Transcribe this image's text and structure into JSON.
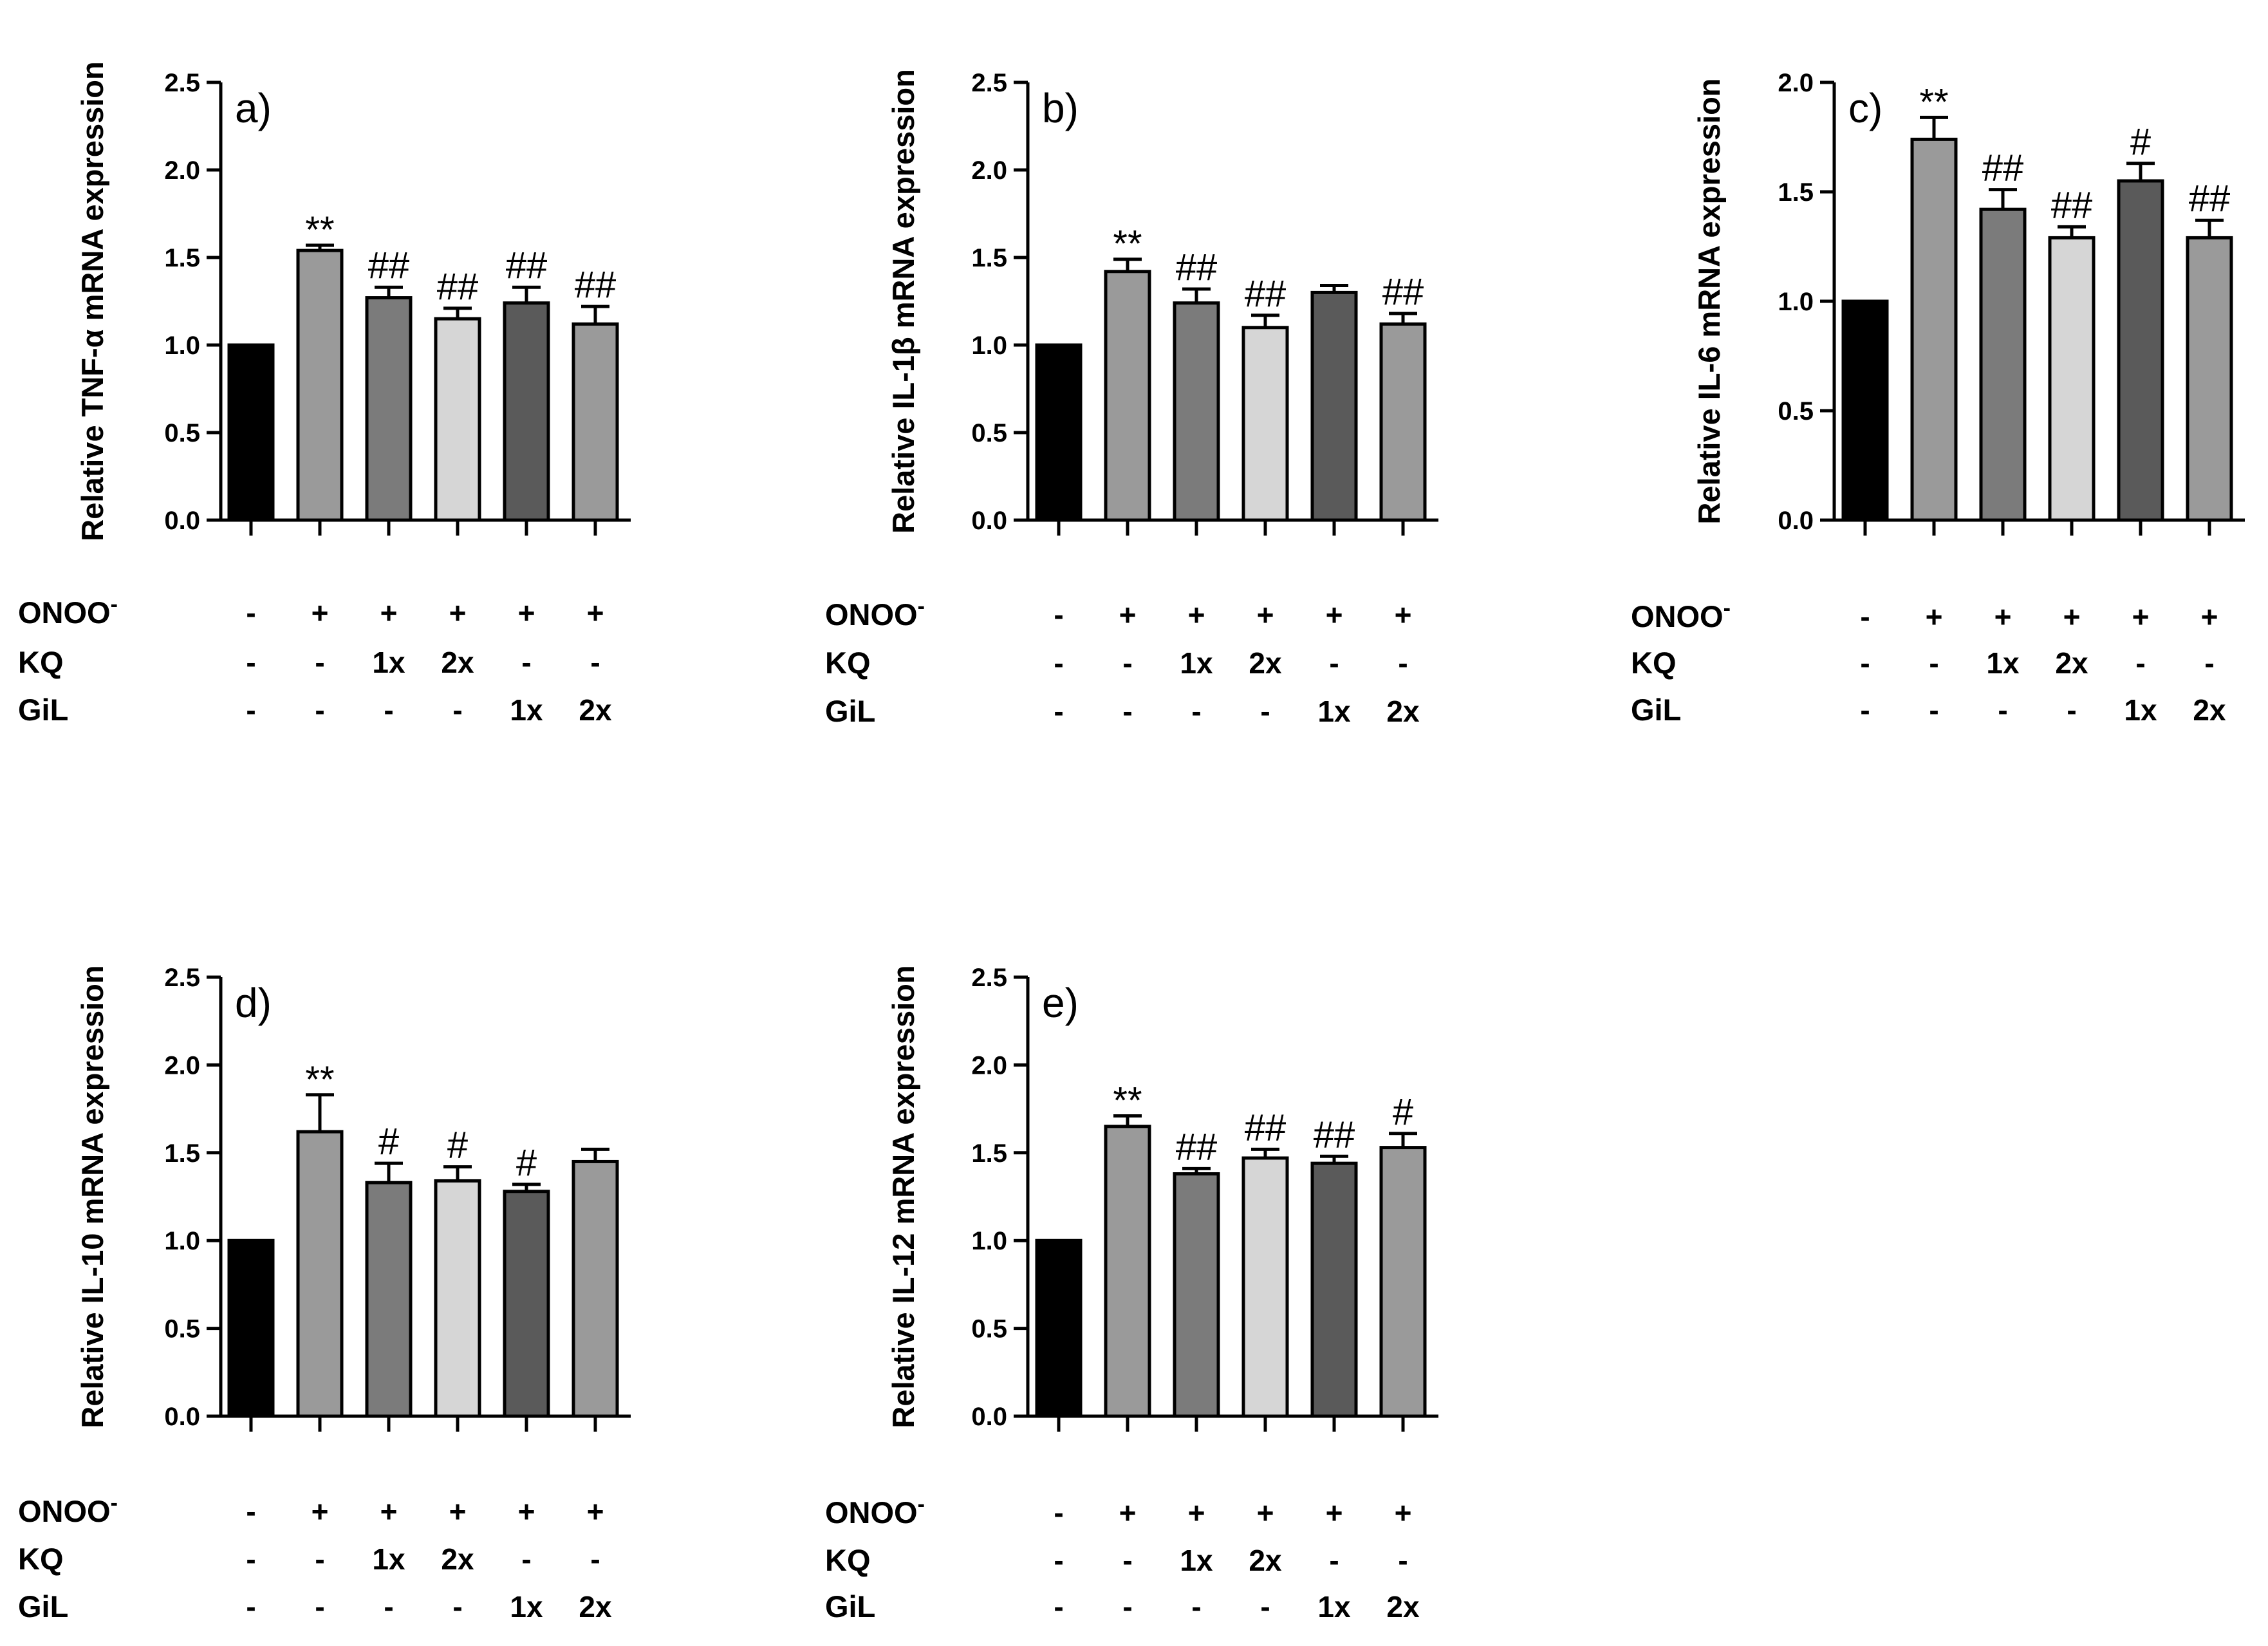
{
  "chart_data": [
    {
      "type": "bar",
      "panel_label": "a)",
      "ylabel": "Relative TNF-α mRNA expression",
      "ylim": [
        0,
        2.5
      ],
      "yticks": [
        "0.0",
        "0.5",
        "1.0",
        "1.5",
        "2.0",
        "2.5"
      ],
      "values": [
        1.0,
        1.54,
        1.27,
        1.15,
        1.24,
        1.12
      ],
      "errors": [
        0,
        0.03,
        0.06,
        0.06,
        0.09,
        0.1
      ],
      "annotations": [
        "",
        "**",
        "##",
        "##",
        "##",
        "##"
      ],
      "conditions": {
        "labels": [
          "ONOO-",
          "KQ",
          "GiL"
        ],
        "rows": [
          [
            "-",
            "+",
            "+",
            "+",
            "+",
            "+"
          ],
          [
            "-",
            "-",
            "1x",
            "2x",
            "-",
            "-"
          ],
          [
            "-",
            "-",
            "-",
            "-",
            "1x",
            "2x"
          ]
        ]
      }
    },
    {
      "type": "bar",
      "panel_label": "b)",
      "ylabel": "Relative IL-1β mRNA expression",
      "ylim": [
        0,
        2.5
      ],
      "yticks": [
        "0.0",
        "0.5",
        "1.0",
        "1.5",
        "2.0",
        "2.5"
      ],
      "values": [
        1.0,
        1.42,
        1.24,
        1.1,
        1.3,
        1.12
      ],
      "errors": [
        0,
        0.07,
        0.08,
        0.07,
        0.04,
        0.06
      ],
      "annotations": [
        "",
        "**",
        "##",
        "##",
        "",
        "##"
      ],
      "conditions": {
        "labels": [
          "ONOO-",
          "KQ",
          "GiL"
        ],
        "rows": [
          [
            "-",
            "+",
            "+",
            "+",
            "+",
            "+"
          ],
          [
            "-",
            "-",
            "1x",
            "2x",
            "-",
            "-"
          ],
          [
            "-",
            "-",
            "-",
            "-",
            "1x",
            "2x"
          ]
        ]
      }
    },
    {
      "type": "bar",
      "panel_label": "c)",
      "ylabel": "Relative IL-6 mRNA expression",
      "ylim": [
        0,
        2.0
      ],
      "yticks": [
        "0.0",
        "0.5",
        "1.0",
        "1.5",
        "2.0"
      ],
      "values": [
        1.0,
        1.74,
        1.42,
        1.29,
        1.55,
        1.29
      ],
      "errors": [
        0,
        0.1,
        0.09,
        0.05,
        0.08,
        0.08
      ],
      "annotations": [
        "",
        "**",
        "##",
        "##",
        "#",
        "##"
      ],
      "conditions": {
        "labels": [
          "ONOO-",
          "KQ",
          "GiL"
        ],
        "rows": [
          [
            "-",
            "+",
            "+",
            "+",
            "+",
            "+"
          ],
          [
            "-",
            "-",
            "1x",
            "2x",
            "-",
            "-"
          ],
          [
            "-",
            "-",
            "-",
            "-",
            "1x",
            "2x"
          ]
        ]
      }
    },
    {
      "type": "bar",
      "panel_label": "d)",
      "ylabel": "Relative IL-10 mRNA expression",
      "ylim": [
        0,
        2.5
      ],
      "yticks": [
        "0.0",
        "0.5",
        "1.0",
        "1.5",
        "2.0",
        "2.5"
      ],
      "values": [
        1.0,
        1.62,
        1.33,
        1.34,
        1.28,
        1.45
      ],
      "errors": [
        0,
        0.21,
        0.11,
        0.08,
        0.04,
        0.07
      ],
      "annotations": [
        "",
        "**",
        "#",
        "#",
        "#",
        ""
      ],
      "conditions": {
        "labels": [
          "ONOO-",
          "KQ",
          "GiL"
        ],
        "rows": [
          [
            "-",
            "+",
            "+",
            "+",
            "+",
            "+"
          ],
          [
            "-",
            "-",
            "1x",
            "2x",
            "-",
            "-"
          ],
          [
            "-",
            "-",
            "-",
            "-",
            "1x",
            "2x"
          ]
        ]
      }
    },
    {
      "type": "bar",
      "panel_label": "e)",
      "ylabel": "Relative IL-12 mRNA expression",
      "ylim": [
        0,
        2.5
      ],
      "yticks": [
        "0.0",
        "0.5",
        "1.0",
        "1.5",
        "2.0",
        "2.5"
      ],
      "values": [
        1.0,
        1.65,
        1.38,
        1.47,
        1.44,
        1.53
      ],
      "errors": [
        0,
        0.06,
        0.03,
        0.05,
        0.04,
        0.08
      ],
      "annotations": [
        "",
        "**",
        "##",
        "##",
        "##",
        "#"
      ],
      "conditions": {
        "labels": [
          "ONOO-",
          "KQ",
          "GiL"
        ],
        "rows": [
          [
            "-",
            "+",
            "+",
            "+",
            "+",
            "+"
          ],
          [
            "-",
            "-",
            "1x",
            "2x",
            "-",
            "-"
          ],
          [
            "-",
            "-",
            "-",
            "-",
            "1x",
            "2x"
          ]
        ]
      }
    }
  ],
  "bar_colors": [
    "#000000",
    "#9a9a9a",
    "#7b7b7b",
    "#d6d6d6",
    "#5a5a5a",
    "#9a9a9a"
  ]
}
